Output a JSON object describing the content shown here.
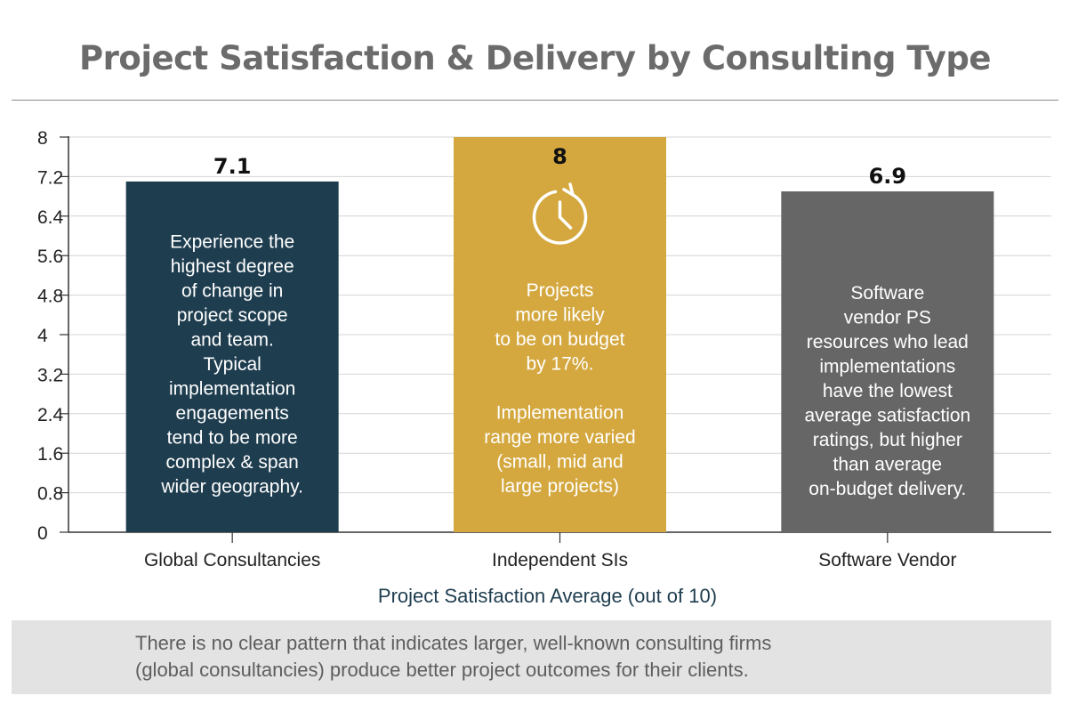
{
  "title": "Project Satisfaction & Delivery by Consulting Type",
  "chart_data": {
    "type": "bar",
    "categories": [
      "Global Consultancies",
      "Independent SIs",
      "Software Vendor"
    ],
    "values": [
      7.1,
      8,
      6.9
    ],
    "value_labels": [
      "7.1",
      "8",
      "6.9"
    ],
    "xlabel": "Project Satisfaction Average (out of 10)",
    "ylabel": "",
    "ylim": [
      0,
      8
    ],
    "yticks": [
      "0",
      "0.8",
      "1.6",
      "2.4",
      "3.2",
      "4",
      "4.8",
      "5.6",
      "6.4",
      "7.2",
      "8"
    ],
    "grid": true,
    "bar_colors": [
      "#1e3d4f",
      "#d4a83f",
      "#666666"
    ],
    "bar_annotations": [
      [
        "Experience the",
        "highest degree",
        "of change in",
        "project scope",
        "and team.",
        "Typical",
        "implementation",
        "engagements",
        "tend to be more",
        "complex & span",
        "wider geography."
      ],
      [
        "Projects",
        "more likely",
        "to be on budget",
        "by 17%.",
        "",
        "Implementation",
        "range more varied",
        "(small, mid and",
        "large projects)"
      ],
      [
        "Software",
        "vendor PS",
        "resources who lead",
        "implementations",
        "have the lowest",
        "average satisfaction",
        "ratings, but higher",
        "than average",
        "on-budget delivery."
      ]
    ],
    "bar_icons": [
      "",
      "clock-icon",
      ""
    ]
  },
  "note": {
    "lines": [
      "There is no clear pattern that indicates larger, well-known consulting firms",
      "(global consultancies) produce better project outcomes for their clients."
    ]
  },
  "colors": {
    "title": "#6b6b6b",
    "xlabel": "#1e3d4f",
    "note_bg": "#e3e3e3",
    "note_text": "#5e5e5e"
  }
}
